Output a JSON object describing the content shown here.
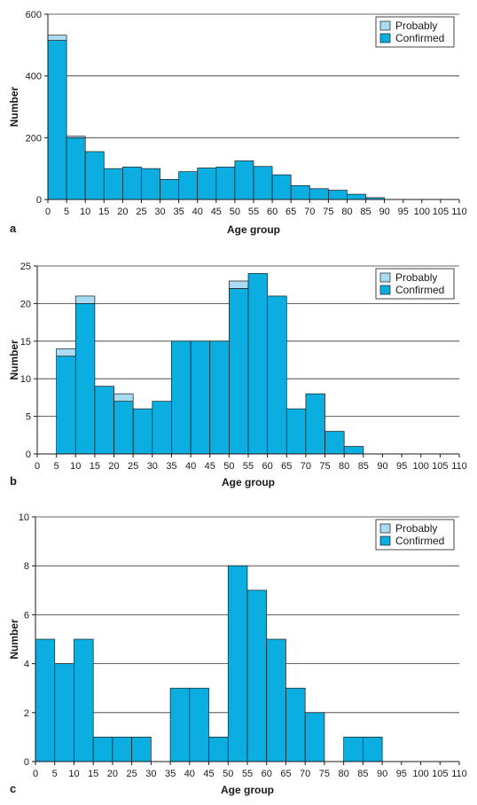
{
  "colors": {
    "confirmed": "#0aaee0",
    "probably": "#a9dcf3",
    "edge": "#1a1a1a",
    "grid": "#333333"
  },
  "legend": {
    "probably": "Probably",
    "confirmed": "Confirmed"
  },
  "chart_data": [
    {
      "type": "bar",
      "stacked": true,
      "panel_letter": "a",
      "xlabel": "Age group",
      "ylabel": "Number",
      "ylim": [
        0,
        600
      ],
      "yticks": [
        0,
        200,
        400,
        600
      ],
      "xlim": [
        0,
        110
      ],
      "xticks": [
        0,
        5,
        10,
        15,
        20,
        25,
        30,
        35,
        40,
        45,
        50,
        55,
        60,
        65,
        70,
        75,
        80,
        85,
        90,
        95,
        100,
        105,
        110
      ],
      "bin_width": 5,
      "grid": true,
      "legend_position": "top-right",
      "bins": [
        0,
        5,
        10,
        15,
        20,
        25,
        30,
        35,
        40,
        45,
        50,
        55,
        60,
        65,
        70,
        75,
        80,
        85
      ],
      "series": [
        {
          "name": "Confirmed",
          "values": [
            515,
            200,
            155,
            100,
            105,
            100,
            65,
            90,
            102,
            105,
            125,
            107,
            80,
            45,
            35,
            30,
            17,
            6
          ]
        },
        {
          "name": "Probably",
          "values": [
            17,
            5,
            0,
            0,
            0,
            0,
            0,
            0,
            0,
            0,
            0,
            0,
            0,
            0,
            0,
            0,
            0,
            0
          ]
        }
      ]
    },
    {
      "type": "bar",
      "stacked": true,
      "panel_letter": "b",
      "xlabel": "Age group",
      "ylabel": "Number",
      "ylim": [
        0,
        25
      ],
      "yticks": [
        0,
        5,
        10,
        15,
        20,
        25
      ],
      "xlim": [
        0,
        110
      ],
      "xticks": [
        0,
        5,
        10,
        15,
        20,
        25,
        30,
        35,
        40,
        45,
        50,
        55,
        60,
        65,
        70,
        75,
        80,
        85,
        90,
        95,
        100,
        105,
        110
      ],
      "bin_width": 5,
      "grid": true,
      "legend_position": "top-right",
      "bins": [
        5,
        10,
        15,
        20,
        25,
        30,
        35,
        40,
        45,
        50,
        55,
        60,
        65,
        70,
        75,
        80
      ],
      "series": [
        {
          "name": "Confirmed",
          "values": [
            13,
            20,
            9,
            7,
            6,
            7,
            15,
            15,
            15,
            22,
            24,
            21,
            6,
            8,
            3,
            1
          ]
        },
        {
          "name": "Probably",
          "values": [
            1,
            1,
            0,
            1,
            0,
            0,
            0,
            0,
            0,
            1,
            0,
            0,
            0,
            0,
            0,
            0
          ]
        }
      ]
    },
    {
      "type": "bar",
      "stacked": true,
      "panel_letter": "c",
      "xlabel": "Age group",
      "ylabel": "Number",
      "ylim": [
        0,
        10
      ],
      "yticks": [
        0,
        2,
        4,
        6,
        8,
        10
      ],
      "xlim": [
        0,
        110
      ],
      "xticks": [
        0,
        5,
        10,
        15,
        20,
        25,
        30,
        35,
        40,
        45,
        50,
        55,
        60,
        65,
        70,
        75,
        80,
        85,
        90,
        95,
        100,
        105,
        110
      ],
      "bin_width": 5,
      "grid": true,
      "legend_position": "top-right",
      "bins": [
        0,
        5,
        10,
        15,
        20,
        25,
        35,
        40,
        45,
        50,
        55,
        60,
        65,
        70,
        80,
        85
      ],
      "series": [
        {
          "name": "Confirmed",
          "values": [
            5,
            4,
            5,
            1,
            1,
            1,
            3,
            3,
            1,
            8,
            7,
            5,
            3,
            2,
            1,
            1
          ]
        },
        {
          "name": "Probably",
          "values": [
            0,
            0,
            0,
            0,
            0,
            0,
            0,
            0,
            0,
            0,
            0,
            0,
            0,
            0,
            0,
            0
          ]
        }
      ]
    }
  ]
}
